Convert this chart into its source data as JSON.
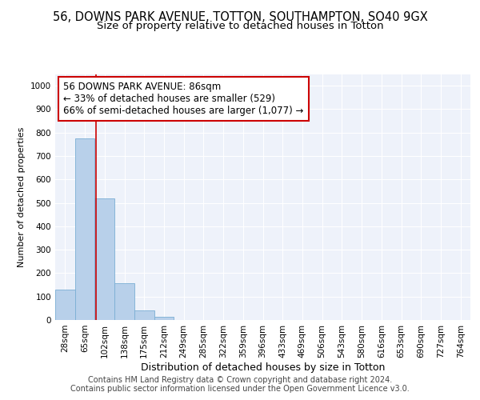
{
  "title_line1": "56, DOWNS PARK AVENUE, TOTTON, SOUTHAMPTON, SO40 9GX",
  "title_line2": "Size of property relative to detached houses in Totton",
  "xlabel": "Distribution of detached houses by size in Totton",
  "ylabel": "Number of detached properties",
  "bin_labels": [
    "28sqm",
    "65sqm",
    "102sqm",
    "138sqm",
    "175sqm",
    "212sqm",
    "249sqm",
    "285sqm",
    "322sqm",
    "359sqm",
    "396sqm",
    "433sqm",
    "469sqm",
    "506sqm",
    "543sqm",
    "580sqm",
    "616sqm",
    "653sqm",
    "690sqm",
    "727sqm",
    "764sqm"
  ],
  "bar_values": [
    130,
    775,
    520,
    158,
    40,
    12,
    0,
    0,
    0,
    0,
    0,
    0,
    0,
    0,
    0,
    0,
    0,
    0,
    0,
    0,
    0
  ],
  "bar_color": "#b8d0ea",
  "bar_edgecolor": "#7aaed4",
  "bar_linewidth": 0.6,
  "background_color": "#eef2fa",
  "grid_color": "#ffffff",
  "annotation_line1": "56 DOWNS PARK AVENUE: 86sqm",
  "annotation_line2": "← 33% of detached houses are smaller (529)",
  "annotation_line3": "66% of semi-detached houses are larger (1,077) →",
  "annotation_box_edgecolor": "#cc0000",
  "annotation_box_facecolor": "#ffffff",
  "vline_color": "#cc0000",
  "vline_linewidth": 1.2,
  "vline_x_index": 1.57,
  "ylim": [
    0,
    1050
  ],
  "yticks": [
    0,
    100,
    200,
    300,
    400,
    500,
    600,
    700,
    800,
    900,
    1000
  ],
  "title_fontsize": 10.5,
  "subtitle_fontsize": 9.5,
  "xlabel_fontsize": 9,
  "ylabel_fontsize": 8,
  "tick_fontsize": 7.5,
  "annotation_fontsize": 8.5,
  "footnote_line1": "Contains HM Land Registry data © Crown copyright and database right 2024.",
  "footnote_line2": "Contains public sector information licensed under the Open Government Licence v3.0.",
  "footnote_fontsize": 7
}
